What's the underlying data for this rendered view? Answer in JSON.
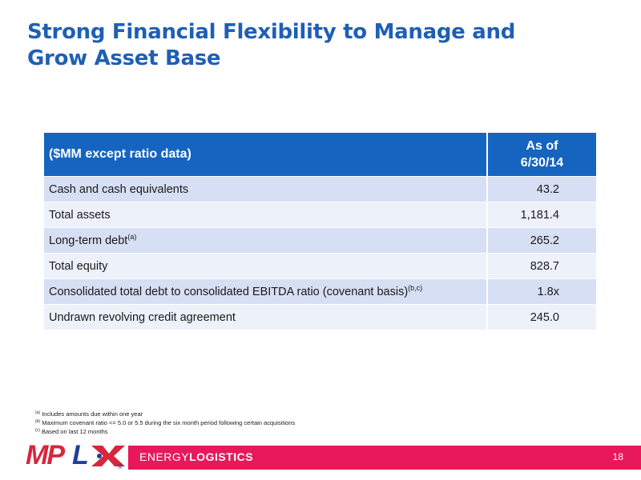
{
  "title": {
    "line1": "Strong Financial Flexibility to Manage and",
    "line2": "Grow Asset Base"
  },
  "table": {
    "header_label": "($MM except ratio data)",
    "header_value_line1": "As of",
    "header_value_line2": "6/30/14",
    "rows": [
      {
        "label": "Cash and cash equivalents",
        "sup": "",
        "value": "43.2"
      },
      {
        "label": "Total assets",
        "sup": "",
        "value": "1,181.4"
      },
      {
        "label": "Long-term debt",
        "sup": "(a)",
        "value": "265.2"
      },
      {
        "label": "Total equity",
        "sup": "",
        "value": "828.7"
      },
      {
        "label": "Consolidated total debt to consolidated EBITDA ratio (covenant basis)",
        "sup": "(b,c)",
        "value": "1.8x"
      },
      {
        "label": "Undrawn revolving credit agreement",
        "sup": "",
        "value": "245.0"
      }
    ]
  },
  "footnotes": [
    {
      "mark": "(a)",
      "text": "Includes amounts due within one year"
    },
    {
      "mark": "(b)",
      "text": "Maximum covenant ratio <= 5.0 or 5.5 during the six month period following certain acquisitions"
    },
    {
      "mark": "(c)",
      "text": "Based on last 12 months"
    }
  ],
  "footer": {
    "brand_light": "ENERGY",
    "brand_bold": "LOGISTICS",
    "page_number": "18",
    "logo_text": "MPLX",
    "logo_registered": "®"
  },
  "colors": {
    "title": "#1f5fb4",
    "header_bg": "#1565c0",
    "row_dark": "#d6dff3",
    "row_light": "#edf1fa",
    "footer_bar": "#e8185a",
    "logo_red": "#d7263d",
    "logo_blue": "#1e3f96"
  }
}
